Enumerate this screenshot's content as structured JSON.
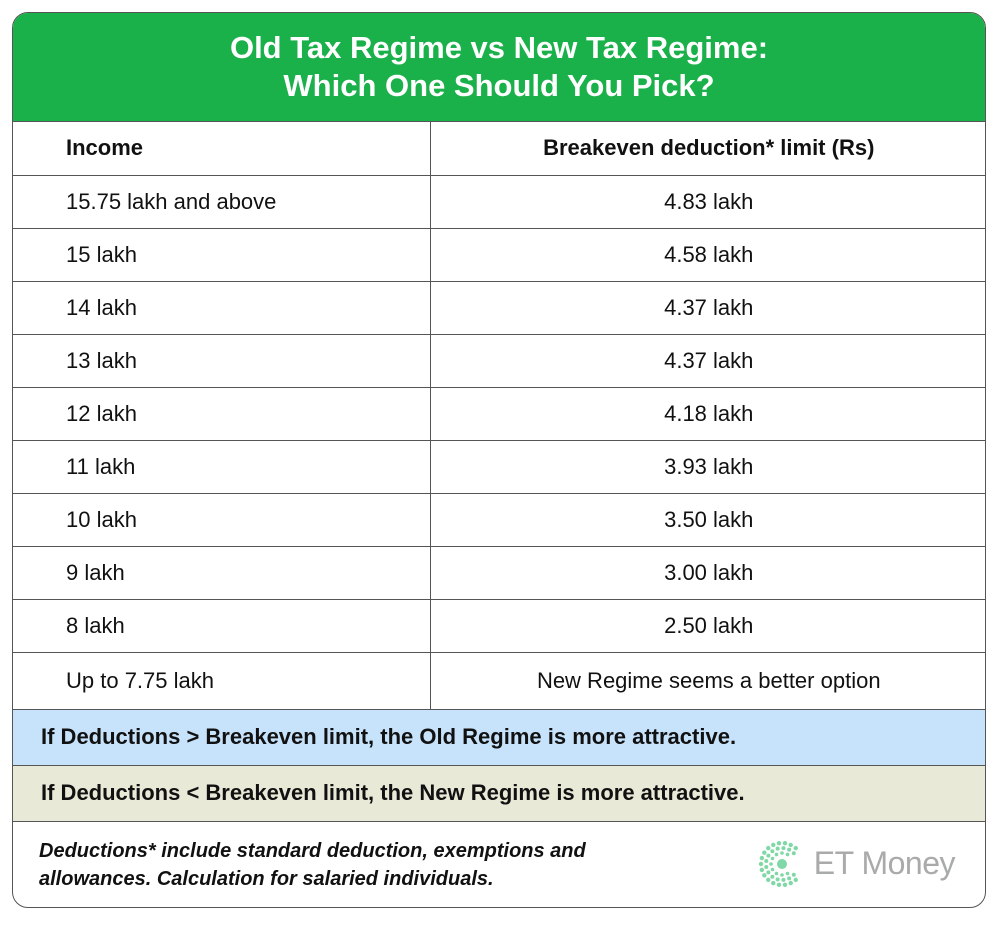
{
  "title": {
    "line1": "Old Tax Regime vs New Tax Regime:",
    "line2": "Which One Should You Pick?"
  },
  "chart_data": {
    "type": "table",
    "columns": [
      "Income",
      "Breakeven deduction* limit (Rs)"
    ],
    "rows": [
      [
        "15.75 lakh and above",
        "4.83 lakh"
      ],
      [
        "15 lakh",
        "4.58 lakh"
      ],
      [
        "14 lakh",
        "4.37 lakh"
      ],
      [
        "13 lakh",
        "4.37 lakh"
      ],
      [
        "12 lakh",
        "4.18 lakh"
      ],
      [
        "11 lakh",
        "3.93 lakh"
      ],
      [
        "10 lakh",
        "3.50 lakh"
      ],
      [
        "9 lakh",
        "3.00 lakh"
      ],
      [
        "8 lakh",
        "2.50 lakh"
      ],
      [
        "Up to 7.75 lakh",
        "New Regime seems a better option"
      ]
    ]
  },
  "notes": {
    "old": "If Deductions > Breakeven limit, the Old Regime is more attractive.",
    "new": "If Deductions < Breakeven limit, the New Regime is more attractive."
  },
  "footnote": {
    "line1": "Deductions* include standard deduction, exemptions and",
    "line2": "allowances. Calculation for salaried individuals."
  },
  "brand": {
    "name": "ET Money",
    "logo_icon": "et-money-logo-icon"
  },
  "colors": {
    "title_bg": "#1ab04a",
    "note_old_bg": "#c7e3fb",
    "note_new_bg": "#e9e9d8",
    "logo_green": "#7fd8a6"
  }
}
